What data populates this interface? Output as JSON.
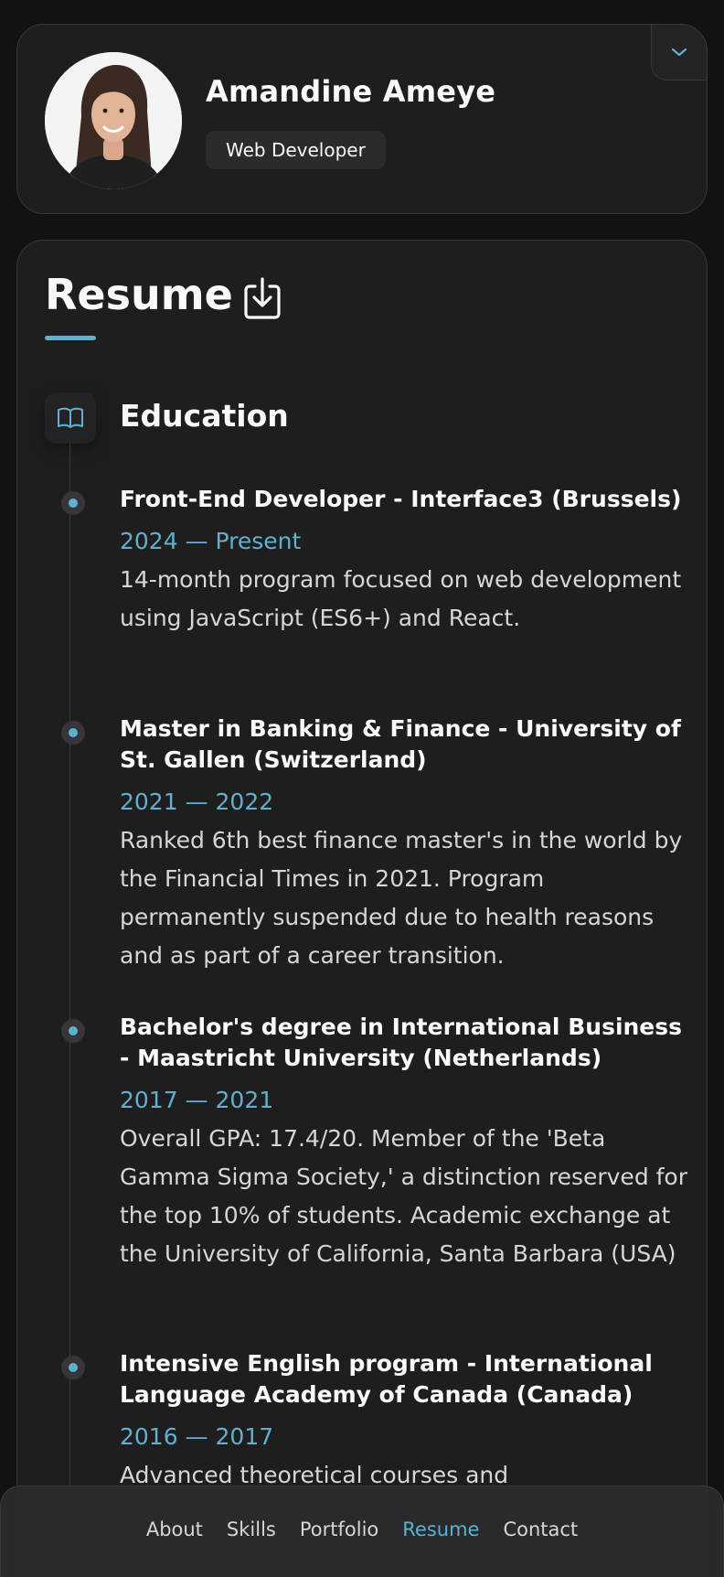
{
  "profile": {
    "name": "Amandine Ameye",
    "title": "Web Developer"
  },
  "resume": {
    "heading": "Resume",
    "education": {
      "heading": "Education",
      "items": [
        {
          "title": "Front-End Developer - Interface3 (Brussels)",
          "date": "2024 — Present",
          "text": "14-month program focused on web development using JavaScript (ES6+) and React."
        },
        {
          "title": "Master in Banking & Finance - University of St. Gallen (Switzerland)",
          "date": "2021 — 2022",
          "text": "Ranked 6th best finance master's in the world by the Financial Times in 2021. Program permanently suspended due to health reasons and as part of a career transition."
        },
        {
          "title": "Bachelor's degree in International Business - Maastricht University (Netherlands)",
          "date": "2017 — 2021",
          "text": "Overall GPA: 17.4/20. Member of the 'Beta Gamma Sigma Society,' a distinction reserved for the top 10% of students. Academic exchange at the University of California, Santa Barbara (USA)"
        },
        {
          "title": "Intensive English program - International Language Academy of Canada (Canada)",
          "date": "2016 — 2017",
          "text": "Advanced theoretical courses and"
        }
      ]
    }
  },
  "nav": {
    "items": [
      "About",
      "Skills",
      "Portfolio",
      "Resume",
      "Contact"
    ],
    "active": "Resume"
  },
  "colors": {
    "accent": "#5fb1cf",
    "background": "#121213",
    "card": "#1e1e1f"
  },
  "icons": {
    "expand": "chevron-down-icon",
    "download": "download-icon",
    "education": "book-open-icon"
  }
}
